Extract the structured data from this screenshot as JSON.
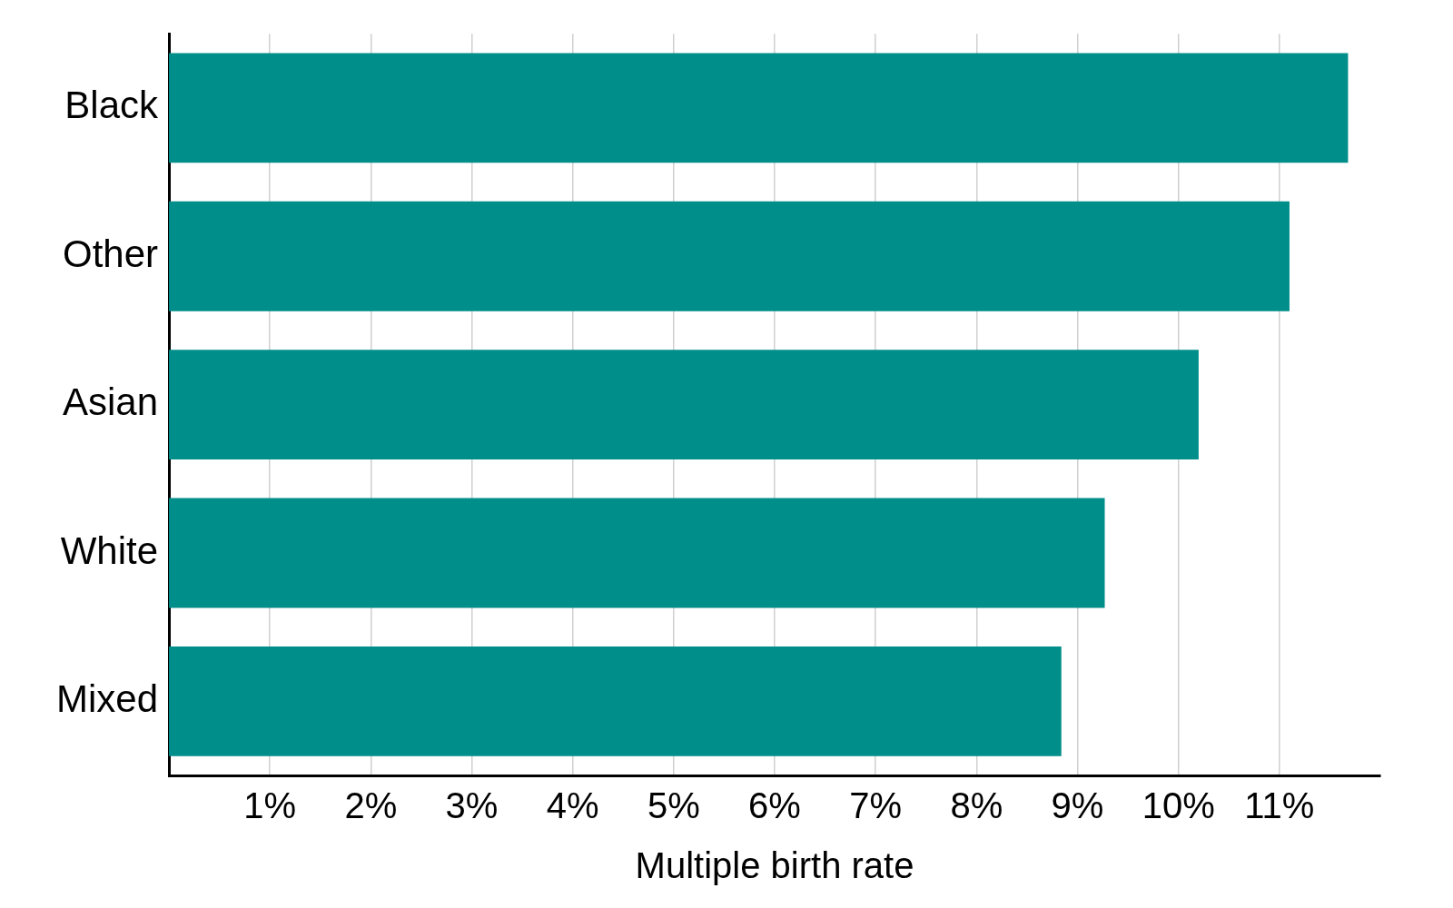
{
  "chart_data": {
    "type": "bar",
    "orientation": "horizontal",
    "x_label": "Multiple birth rate",
    "categories": [
      "Black",
      "Other",
      "Asian",
      "White",
      "Mixed"
    ],
    "values": [
      11.68,
      11.1,
      10.2,
      9.27,
      8.84
    ],
    "color": "#008e8b",
    "xlim": [
      0,
      12
    ],
    "xticks": [
      {
        "value": 1,
        "label": "1%"
      },
      {
        "value": 2,
        "label": "2%"
      },
      {
        "value": 3,
        "label": "3%"
      },
      {
        "value": 4,
        "label": "4%"
      },
      {
        "value": 5,
        "label": "5%"
      },
      {
        "value": 6,
        "label": "6%"
      },
      {
        "value": 7,
        "label": "7%"
      },
      {
        "value": 8,
        "label": "8%"
      },
      {
        "value": 9,
        "label": "9%"
      },
      {
        "value": 10,
        "label": "10%"
      },
      {
        "value": 11,
        "label": "11%"
      }
    ],
    "grid": true
  }
}
